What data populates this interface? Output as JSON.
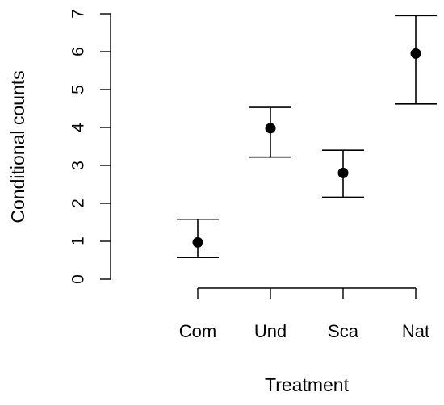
{
  "chart_data": {
    "type": "scatter",
    "title": "",
    "xlabel": "Treatment",
    "ylabel": "Conditional counts",
    "categories": [
      "Com",
      "Und",
      "Sca",
      "Nat"
    ],
    "y_ticks": [
      0,
      1,
      2,
      3,
      4,
      5,
      6,
      7
    ],
    "ylim": [
      0,
      7
    ],
    "grid": false,
    "legend": "none",
    "series": [
      {
        "values": [
          0.97,
          3.98,
          2.8,
          5.95
        ],
        "lower": [
          0.57,
          3.22,
          2.16,
          4.62
        ],
        "upper": [
          1.58,
          4.53,
          3.4,
          6.95
        ]
      }
    ],
    "colors": {
      "marker": "#000000",
      "errorbar": "#000000",
      "axis": "#000000"
    }
  }
}
